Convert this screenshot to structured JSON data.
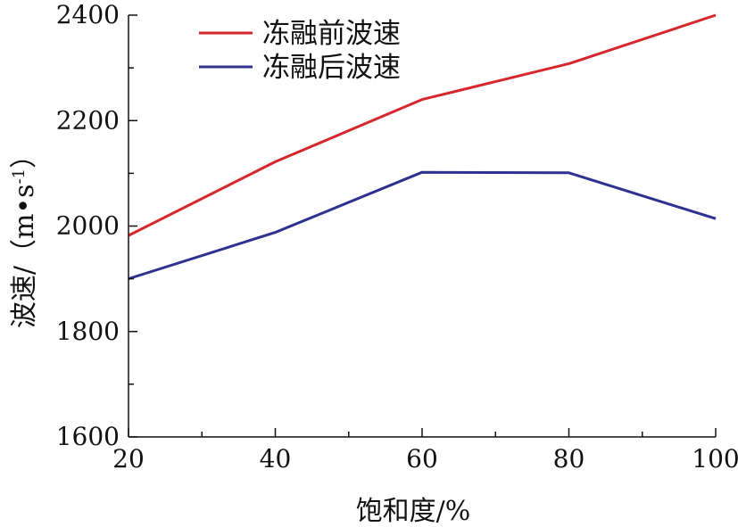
{
  "chart_data": {
    "type": "line",
    "x": [
      20,
      40,
      60,
      80,
      100
    ],
    "series": [
      {
        "name": "冻融前波速",
        "color": "#d7262d",
        "values": [
          1982,
          2122,
          2240,
          2308,
          2400
        ]
      },
      {
        "name": "冻融后波速",
        "color": "#2e3190",
        "values": [
          1900,
          1988,
          2102,
          2101,
          2014
        ]
      }
    ],
    "xlabel": "饱和度/%",
    "ylabel": "波速/（m•s",
    "ylabel_sup": "-1",
    "ylabel_end": "）",
    "xlim": [
      20,
      100
    ],
    "ylim": [
      1600,
      2400
    ],
    "x_ticks": [
      20,
      40,
      60,
      80,
      100
    ],
    "x_tick_labels": [
      "20",
      "40",
      "60",
      "80",
      "100"
    ],
    "x_minor_ticks": [
      30,
      50,
      70,
      90
    ],
    "y_ticks": [
      1600,
      1800,
      2000,
      2200,
      2400
    ],
    "y_tick_labels": [
      "1600",
      "1800",
      "2000",
      "2200",
      "2400"
    ],
    "y_minor_ticks": [
      1700,
      1900,
      2100,
      2300
    ],
    "legend_position": "top-left",
    "grid": false
  }
}
